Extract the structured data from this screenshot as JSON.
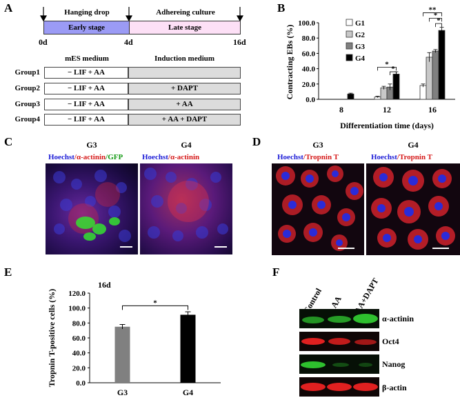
{
  "panel_labels": {
    "a": "A",
    "b": "B",
    "c": "C",
    "d": "D",
    "e": "E",
    "f": "F"
  },
  "panel_a": {
    "stage1_top": "Hanging drop",
    "stage2_top": "Adhereing culture",
    "stage1": "Early stage",
    "stage2": "Late stage",
    "day0": "0d",
    "day4": "4d",
    "day16": "16d",
    "col_mes": "mES medium",
    "col_induction": "Induction medium",
    "groups": [
      {
        "name": "Group1",
        "mes": "− LIF + AA",
        "induction": ""
      },
      {
        "name": "Group2",
        "mes": "− LIF + AA",
        "induction": "+ DAPT"
      },
      {
        "name": "Group3",
        "mes": "− LIF + AA",
        "induction": "+ AA"
      },
      {
        "name": "Group4",
        "mes": "− LIF + AA",
        "induction": "+ AA + DAPT"
      }
    ],
    "colors": {
      "early": "#9b9bf5",
      "late": "#fde0f6"
    }
  },
  "chart_data": [
    {
      "type": "bar",
      "ylabel": "Contracting EBs (%)",
      "xlabel": "Differentiation time (days)",
      "categories": [
        "8",
        "12",
        "16"
      ],
      "ylim": [
        0,
        100
      ],
      "yticks": [
        "0.0",
        "20.0",
        "40.0",
        "60.0",
        "80.0",
        "100.0"
      ],
      "series": [
        {
          "name": "G1",
          "color": "#ffffff",
          "values": [
            0,
            3,
            18
          ],
          "err": [
            0,
            1,
            2
          ]
        },
        {
          "name": "G2",
          "color": "#c8c8c8",
          "values": [
            0,
            15,
            55
          ],
          "err": [
            0,
            2,
            6
          ]
        },
        {
          "name": "G3",
          "color": "#808080",
          "values": [
            0,
            16,
            63
          ],
          "err": [
            0,
            4,
            2
          ]
        },
        {
          "name": "G4",
          "color": "#000000",
          "values": [
            7,
            33,
            90
          ],
          "err": [
            1,
            3,
            4
          ]
        }
      ],
      "significance": [
        "*",
        "*",
        "**",
        "*",
        "*"
      ],
      "legend_position": "top-left"
    },
    {
      "type": "bar",
      "title": "16d",
      "ylabel": "Tropnin T-positive cells (%)",
      "categories": [
        "G3",
        "G4"
      ],
      "ylim": [
        0,
        120
      ],
      "yticks": [
        "0.0",
        "20.0",
        "40.0",
        "60.0",
        "80.0",
        "100.0",
        "120.0"
      ],
      "values": [
        75,
        91
      ],
      "err": [
        3,
        4
      ],
      "colors": [
        "#808080",
        "#000000"
      ],
      "significance": "*"
    }
  ],
  "panel_c": {
    "left_title": "G3",
    "right_title": "G4",
    "left_stain": {
      "hoechst": "Hoechst",
      "sep1": "/",
      "actinin": "α-actinin",
      "gfp": "/GFP"
    },
    "right_stain": {
      "hoechst": "Hoechst",
      "sep1": "/",
      "actinin": "α-actinin"
    }
  },
  "panel_d": {
    "left_title": "G3",
    "right_title": "G4",
    "stain": {
      "hoechst": "Hoechst",
      "sep": "/",
      "tropnin": "Tropnin T"
    }
  },
  "panel_f": {
    "lanes": [
      "Control",
      "AA",
      "AA+DAPT"
    ],
    "rows": [
      "α-actinin",
      "Oct4",
      "Nanog",
      "β-actin"
    ]
  }
}
